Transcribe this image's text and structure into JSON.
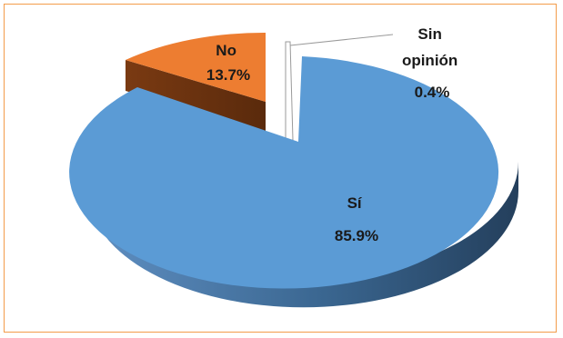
{
  "chart_data": {
    "type": "pie",
    "title": "",
    "three_d": true,
    "slices": [
      {
        "label": "Sí",
        "value": 85.9,
        "value_text": "85.9%",
        "color": "#5b9bd5"
      },
      {
        "label": "No",
        "value": 13.7,
        "value_text": "13.7%",
        "color": "#ed7d31"
      },
      {
        "label": "Sin opinión",
        "label_lines": [
          "Sin",
          "opinión"
        ],
        "value": 0.4,
        "value_text": "0.4%",
        "color": "#ffffff"
      }
    ],
    "data_labels": "inside/outside with percentage"
  }
}
